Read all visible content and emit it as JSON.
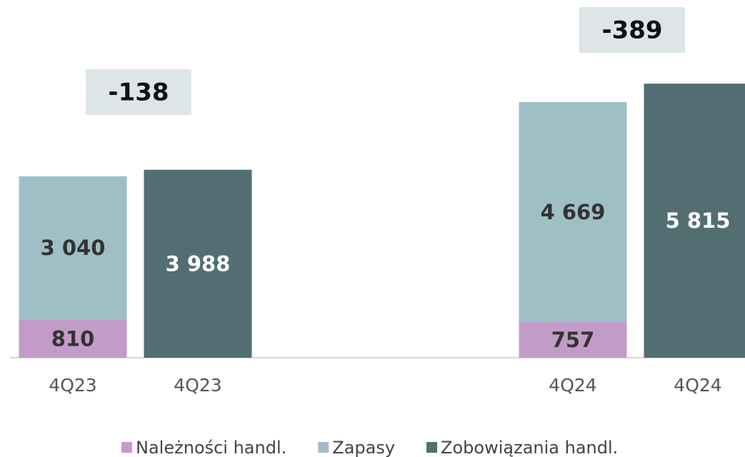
{
  "chart_data": {
    "type": "stacked_bar",
    "categories": [
      "4Q23",
      "4Q23",
      null,
      null,
      "4Q24",
      "4Q24"
    ],
    "series": [
      {
        "name": "Należności handl.",
        "color": "#c39bc8",
        "label_color": "#333333",
        "values": [
          810,
          null,
          null,
          null,
          757,
          null
        ],
        "value_labels": [
          "810",
          null,
          null,
          null,
          "757",
          null
        ]
      },
      {
        "name": "Zapasy",
        "color": "#9fbfc7",
        "label_color": "#333333",
        "values": [
          3040,
          null,
          null,
          null,
          4669,
          null
        ],
        "value_labels": [
          "3 040",
          null,
          null,
          null,
          "4 669",
          null
        ]
      },
      {
        "name": "Zobowiązania handl.",
        "color": "#526e73",
        "label_color": "#ffffff",
        "values": [
          null,
          3988,
          null,
          null,
          null,
          5815
        ],
        "value_labels": [
          null,
          "3 988",
          null,
          null,
          null,
          "5 815"
        ]
      }
    ],
    "annotations": [
      "-138",
      "-389"
    ],
    "ylim": [
      0,
      7590
    ]
  }
}
